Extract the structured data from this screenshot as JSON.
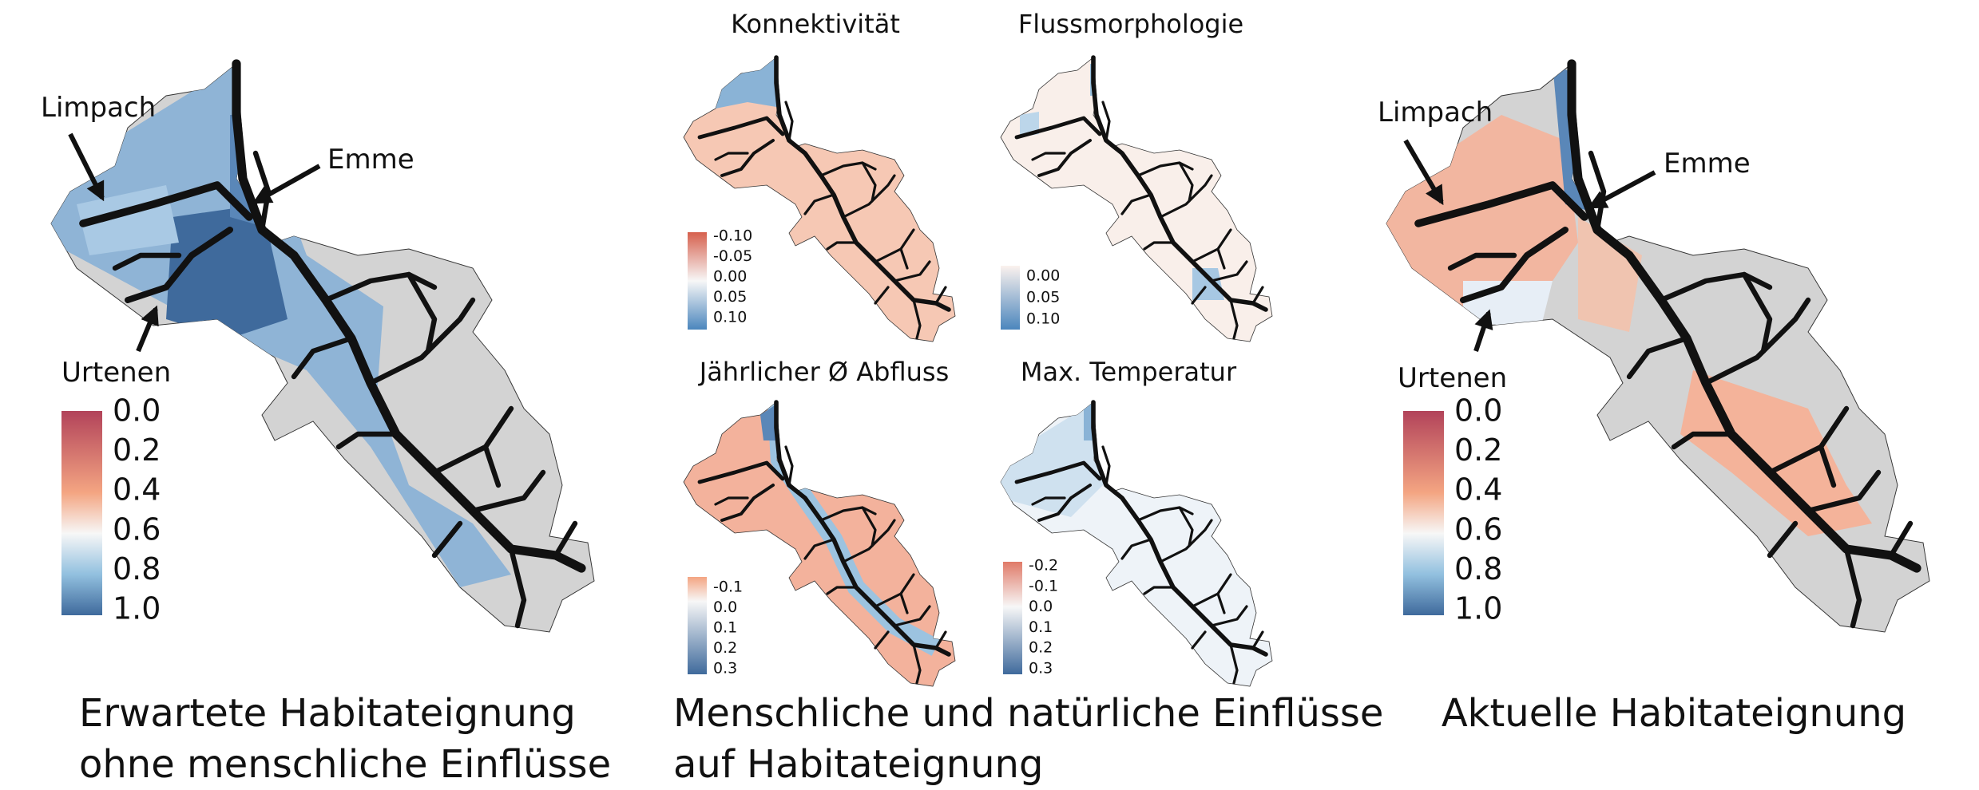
{
  "panels": [
    {
      "caption": [
        "Erwartete Habitateignung",
        "ohne menschliche Einflüsse"
      ],
      "labels": [
        "Limpach",
        "Emme",
        "Urtenen"
      ],
      "legend": [
        "0.0",
        "0.2",
        "0.4",
        "0.6",
        "0.8",
        "1.0"
      ]
    },
    {
      "caption": [
        "Menschliche und natürliche Einflüsse",
        "auf Habitateignung"
      ],
      "maps": [
        {
          "title": "Konnektivität",
          "legend": [
            "-0.10",
            "-0.05",
            "0.00",
            "0.05",
            "0.10"
          ]
        },
        {
          "title": "Flussmorphologie",
          "legend": [
            "0.00",
            "0.05",
            "0.10"
          ]
        },
        {
          "title": "Jährlicher Ø Abfluss",
          "legend": [
            "-0.1",
            "0.0",
            "0.1",
            "0.2",
            "0.3"
          ]
        },
        {
          "title": "Max. Temperatur",
          "legend": [
            "-0.2",
            "-0.1",
            "0.0",
            "0.1",
            "0.2",
            "0.3"
          ]
        }
      ]
    },
    {
      "caption": [
        "Aktuelle Habitateignung"
      ],
      "labels": [
        "Limpach",
        "Emme",
        "Urtenen"
      ],
      "legend": [
        "0.0",
        "0.2",
        "0.4",
        "0.6",
        "0.8",
        "1.0"
      ]
    }
  ]
}
